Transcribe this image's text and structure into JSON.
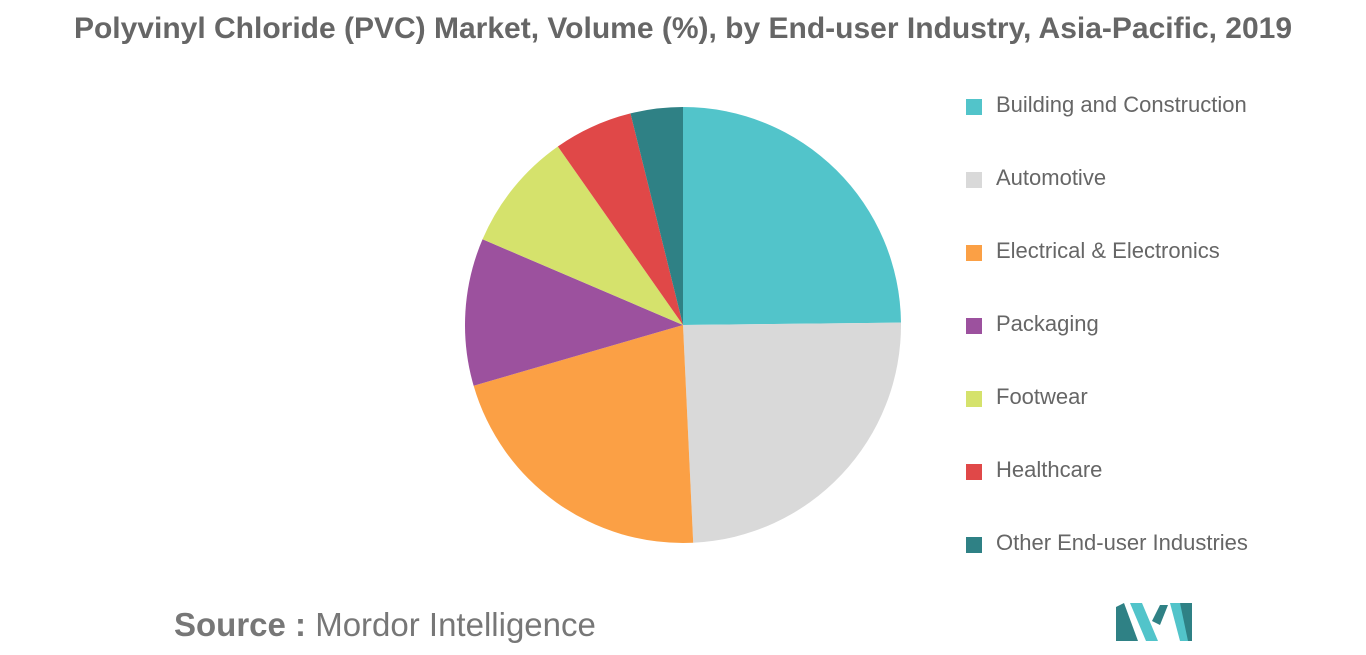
{
  "chart_data": {
    "type": "pie",
    "title": "Polyvinyl Chloride (PVC) Market, Volume (%), by End-user Industry, Asia-Pacific, 2019",
    "legend_position": "right",
    "series": [
      {
        "name": "Building and Construction",
        "value": 25.0,
        "color": "#52C4CA"
      },
      {
        "name": "Automotive",
        "value": 24.6,
        "color": "#D9D9D9"
      },
      {
        "name": "Electrical & Electronics",
        "value": 21.4,
        "color": "#FBA045"
      },
      {
        "name": "Packaging",
        "value": 11.0,
        "color": "#9C519E"
      },
      {
        "name": "Footwear",
        "value": 8.9,
        "color": "#D5E26C"
      },
      {
        "name": "Healthcare",
        "value": 5.9,
        "color": "#E04848"
      },
      {
        "name": "Other End-user Industries",
        "value": 3.9,
        "color": "#2F8185"
      }
    ]
  },
  "source": {
    "label": "Source :",
    "text": "Mordor Intelligence"
  },
  "logo": {
    "colors": [
      "#2F8185",
      "#52C4CA"
    ]
  }
}
